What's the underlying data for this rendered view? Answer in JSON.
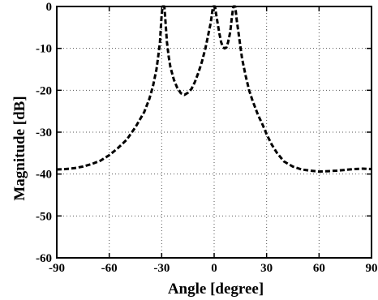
{
  "chart_data": {
    "type": "line",
    "xlabel": "Angle [degree]",
    "ylabel": "Magnitude [dB]",
    "xlim": [
      -90,
      90
    ],
    "ylim": [
      -60,
      0
    ],
    "xticks": [
      -90,
      -60,
      -30,
      0,
      30,
      60,
      90
    ],
    "yticks": [
      0,
      -10,
      -20,
      -30,
      -40,
      -50,
      -60
    ],
    "x_tick_labels": [
      "-90",
      "-60",
      "-30",
      "0",
      "30",
      "60",
      "90"
    ],
    "y_tick_labels": [
      "0",
      "-10",
      "-20",
      "-30",
      "-40",
      "-50",
      "-60"
    ],
    "grid": true,
    "line_style": "dashed",
    "line_color": "#000000",
    "series": [
      {
        "points": [
          [
            -90,
            -38.9
          ],
          [
            -85,
            -38.8
          ],
          [
            -80,
            -38.6
          ],
          [
            -75,
            -38.2
          ],
          [
            -70,
            -37.6
          ],
          [
            -65,
            -36.8
          ],
          [
            -60,
            -35.5
          ],
          [
            -55,
            -33.8
          ],
          [
            -50,
            -31.8
          ],
          [
            -45,
            -28.8
          ],
          [
            -40,
            -25.2
          ],
          [
            -37,
            -22.0
          ],
          [
            -35,
            -19.0
          ],
          [
            -33,
            -15.0
          ],
          [
            -32,
            -12.0
          ],
          [
            -31,
            -8.5
          ],
          [
            -30.5,
            -5.0
          ],
          [
            -30,
            -2.0
          ],
          [
            -29.5,
            0.0
          ],
          [
            -28.5,
            0.0
          ],
          [
            -28,
            -2.5
          ],
          [
            -27.5,
            -5.5
          ],
          [
            -27,
            -8.5
          ],
          [
            -26,
            -12.0
          ],
          [
            -25,
            -14.5
          ],
          [
            -23,
            -17.5
          ],
          [
            -21,
            -19.5
          ],
          [
            -19,
            -20.7
          ],
          [
            -17,
            -21.1
          ],
          [
            -15,
            -20.6
          ],
          [
            -13,
            -19.7
          ],
          [
            -11,
            -18.0
          ],
          [
            -9,
            -15.8
          ],
          [
            -7,
            -13.2
          ],
          [
            -5,
            -10.0
          ],
          [
            -4,
            -8.0
          ],
          [
            -3,
            -6.0
          ],
          [
            -2,
            -4.0
          ],
          [
            -1.5,
            -2.5
          ],
          [
            -1,
            -1.0
          ],
          [
            -0.5,
            0.0
          ],
          [
            0.5,
            0.0
          ],
          [
            1,
            -1.5
          ],
          [
            2,
            -4.0
          ],
          [
            3,
            -6.5
          ],
          [
            4,
            -8.5
          ],
          [
            5,
            -9.7
          ],
          [
            6,
            -10.0
          ],
          [
            7,
            -9.8
          ],
          [
            8,
            -8.5
          ],
          [
            9,
            -6.5
          ],
          [
            9.5,
            -5.0
          ],
          [
            10,
            -3.0
          ],
          [
            10.5,
            -1.5
          ],
          [
            11,
            0.0
          ],
          [
            12,
            0.0
          ],
          [
            12.5,
            -1.5
          ],
          [
            13,
            -3.5
          ],
          [
            14,
            -6.5
          ],
          [
            15,
            -9.5
          ],
          [
            16,
            -12.5
          ],
          [
            18,
            -16.5
          ],
          [
            20,
            -20.0
          ],
          [
            22,
            -22.5
          ],
          [
            25,
            -25.8
          ],
          [
            28,
            -28.5
          ],
          [
            30,
            -30.5
          ],
          [
            33,
            -33.0
          ],
          [
            36,
            -35.0
          ],
          [
            40,
            -37.0
          ],
          [
            45,
            -38.2
          ],
          [
            50,
            -38.9
          ],
          [
            55,
            -39.2
          ],
          [
            60,
            -39.4
          ],
          [
            65,
            -39.3
          ],
          [
            70,
            -39.2
          ],
          [
            75,
            -39.0
          ],
          [
            80,
            -38.8
          ],
          [
            85,
            -38.7
          ],
          [
            90,
            -38.8
          ]
        ]
      }
    ]
  }
}
